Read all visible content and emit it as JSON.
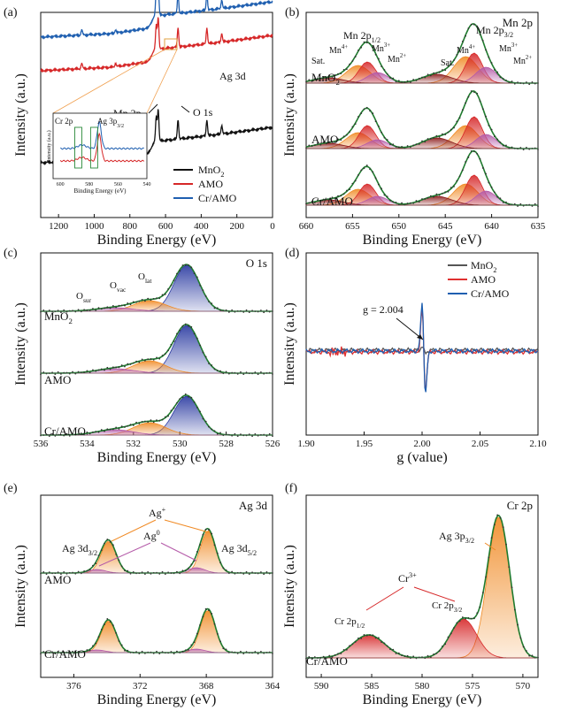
{
  "chart_data": [
    {
      "type": "line",
      "panel_label": "(a)",
      "xlabel": "Binding Energy (eV)",
      "ylabel": "Intensity (a.u.)",
      "xlim": [
        1300,
        0
      ],
      "xticks": [
        1200,
        1000,
        800,
        600,
        400,
        200,
        0
      ],
      "series": [
        {
          "name": "MnO<sub>2</sub>",
          "color": "#111111"
        },
        {
          "name": "AMO",
          "color": "#d62728"
        },
        {
          "name": "Cr/AMO",
          "color": "#1f5fb0"
        }
      ],
      "annotations": [
        "Mn 2p",
        "O 1s",
        "Ag 3d"
      ],
      "inset": {
        "xlabel": "Binding Energy (eV)",
        "ylabel": "Intensity (a.u.)",
        "xticks": [
          600,
          580,
          560,
          540
        ],
        "labels": [
          "Cr 2p",
          "Ag 3p<sub>3/2</sub>"
        ]
      }
    },
    {
      "type": "area",
      "panel_label": "(b)",
      "title": "Mn 2p",
      "xlabel": "Binding Energy (eV)",
      "ylabel": "Intensity (a.u.)",
      "xlim": [
        660,
        635
      ],
      "xticks": [
        660,
        655,
        650,
        645,
        640,
        635
      ],
      "samples": [
        "MnO<sub>2</sub>",
        "AMO",
        "Cr/AMO"
      ],
      "peak_labels": [
        {
          "text": "Mn 2p<sub>1/2</sub>",
          "color": "#111111"
        },
        {
          "text": "Mn 2p<sub>3/2</sub>",
          "color": "#111111"
        },
        {
          "text": "Mn<sup>4+</sup>",
          "color": "#e08020"
        },
        {
          "text": "Mn<sup>3+</sup>",
          "color": "#c0202a"
        },
        {
          "text": "Mn<sup>2+</sup>",
          "color": "#c040a8"
        },
        {
          "text": "Sat.",
          "color": "#8b1a1a"
        }
      ],
      "peaks": [
        {
          "species": "Mn4+",
          "center": 642.8,
          "color": "#f08a24"
        },
        {
          "species": "Mn3+",
          "center": 641.9,
          "color": "#d62728"
        },
        {
          "species": "Mn2+",
          "center": 640.6,
          "color": "#b45aa8"
        },
        {
          "species": "Mn4+",
          "center": 654.4,
          "color": "#f08a24"
        },
        {
          "species": "Mn3+",
          "center": 653.4,
          "color": "#d62728"
        },
        {
          "species": "Mn2+",
          "center": 652.3,
          "color": "#b45aa8"
        },
        {
          "species": "Sat.",
          "center": 645.9,
          "color": "#8b1a1a"
        },
        {
          "species": "Sat.",
          "center": 657.6,
          "color": "#8b1a1a"
        }
      ]
    },
    {
      "type": "area",
      "panel_label": "(c)",
      "title": "O 1s",
      "xlabel": "Binding Energy (eV)",
      "ylabel": "Intensity (a.u.)",
      "xlim": [
        536,
        526
      ],
      "xticks": [
        536,
        534,
        532,
        530,
        528,
        526
      ],
      "samples": [
        "MnO<sub>2</sub>",
        "AMO",
        "Cr/AMO"
      ],
      "peak_labels": [
        {
          "text": "O<sub>sur</sub>",
          "color": "#b45aa8"
        },
        {
          "text": "O<sub>vac</sub>",
          "color": "#e08020"
        },
        {
          "text": "O<sub>lat</sub>",
          "color": "#1f3fa0"
        }
      ],
      "peaks": [
        {
          "species": "O lat",
          "center": 529.7,
          "color": "#2838a0"
        },
        {
          "species": "O vac",
          "center": 531.3,
          "color": "#f08a24"
        },
        {
          "species": "O sur",
          "center": 532.8,
          "color": "#b45aa8"
        }
      ]
    },
    {
      "type": "line",
      "panel_label": "(d)",
      "xlabel": "g (value)",
      "ylabel": "Intensity (a.u.)",
      "xlim": [
        1.9,
        2.1
      ],
      "xticks": [
        "1.90",
        "1.95",
        "2.00",
        "2.05",
        "2.10"
      ],
      "series": [
        {
          "name": "MnO<sub>2</sub>",
          "color": "#555555"
        },
        {
          "name": "AMO",
          "color": "#e03030"
        },
        {
          "name": "Cr/AMO",
          "color": "#1f5fb0"
        }
      ],
      "annotation": "g = 2.004"
    },
    {
      "type": "area",
      "panel_label": "(e)",
      "title": "Ag 3d",
      "xlabel": "Binding Energy (eV)",
      "ylabel": "Intensity (a.u.)",
      "xlim": [
        378,
        364
      ],
      "xticks": [
        376,
        372,
        368,
        364
      ],
      "samples": [
        "AMO",
        "Cr/AMO"
      ],
      "peak_labels": [
        {
          "text": "Ag 3d<sub>3/2</sub>",
          "color": "#111111"
        },
        {
          "text": "Ag 3d<sub>5/2</sub>",
          "color": "#111111"
        },
        {
          "text": "Ag<sup>+</sup>",
          "color": "#e08020"
        },
        {
          "text": "Ag<sup>0</sup>",
          "color": "#b45aa8"
        }
      ],
      "peaks": [
        {
          "species": "Ag+ 3d5/2",
          "center": 367.9,
          "color": "#f08a24"
        },
        {
          "species": "Ag+ 3d3/2",
          "center": 373.9,
          "color": "#f08a24"
        },
        {
          "species": "Ag0 3d5/2",
          "center": 368.6,
          "color": "#b45aa8"
        },
        {
          "species": "Ag0 3d3/2",
          "center": 374.6,
          "color": "#b45aa8"
        }
      ]
    },
    {
      "type": "area",
      "panel_label": "(f)",
      "title": "Cr 2p",
      "xlabel": "Binding Energy (eV)",
      "ylabel": "Intensity (a.u.)",
      "xlim": [
        591.5,
        568.5
      ],
      "xticks": [
        590,
        585,
        580,
        575,
        570
      ],
      "samples": [
        "Cr/AMO"
      ],
      "peak_labels": [
        {
          "text": "Ag 3p<sub>3/2</sub>",
          "color": "#e08020"
        },
        {
          "text": "Cr<sup>3+</sup>",
          "color": "#c0202a"
        },
        {
          "text": "Cr 2p<sub>1/2</sub>",
          "color": "#111111"
        },
        {
          "text": "Cr 2p<sub>3/2</sub>",
          "color": "#111111"
        }
      ],
      "peaks": [
        {
          "species": "Ag 3p3/2",
          "center": 572.4,
          "color": "#f08a24"
        },
        {
          "species": "Cr3+ 2p3/2",
          "center": 575.9,
          "color": "#d62728"
        },
        {
          "species": "Cr3+ 2p1/2",
          "center": 585.3,
          "color": "#d62728"
        }
      ]
    }
  ]
}
